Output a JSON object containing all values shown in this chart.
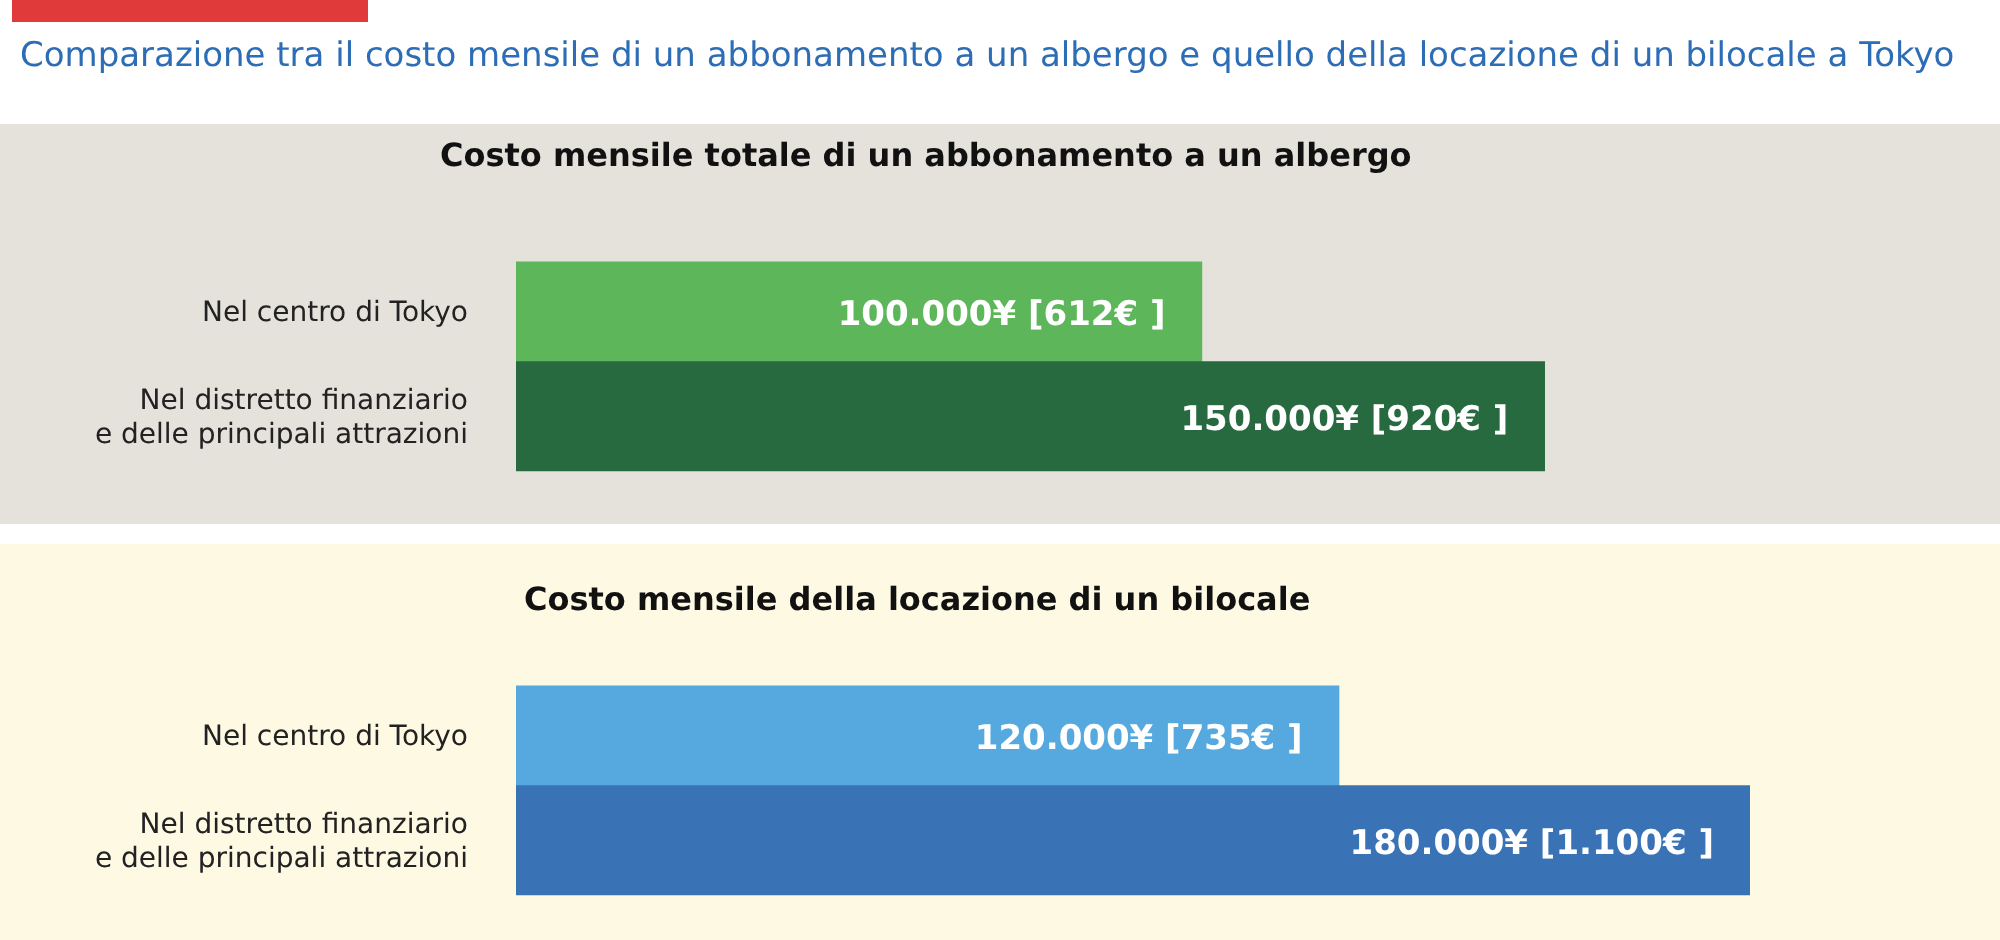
{
  "chart_data": [
    {
      "type": "bar",
      "orientation": "horizontal",
      "title": "Comparazione tra il costo mensile di un abbonamento a un albergo e quello della locazione di un bilocale a Tokyo",
      "subtitle": "Costo mensile totale di un abbonamento a un albergo",
      "categories": [
        "Nel centro di Tokyo",
        "Nel distretto finanziario\ne delle principali attrazioni"
      ],
      "values": [
        100000,
        150000
      ],
      "colors": [
        "#5db65a",
        "#276a3f"
      ],
      "value_labels": [
        "100.000¥ [612€ ]",
        "150.000¥ [920€ ]"
      ],
      "tick_labels": "y"
    },
    {
      "type": "bar",
      "orientation": "horizontal",
      "title": "Costo mensile della locazione di un bilocale",
      "categories": [
        "Nel centro di Tokyo",
        "Nel distretto finanziario\ne delle principali attrazioni"
      ],
      "values": [
        120000,
        180000
      ],
      "colors": [
        "#55a9de",
        "#3973b5"
      ],
      "value_labels": [
        "120.000¥ [735€ ]",
        "180.000¥ [1.100€ ]"
      ],
      "tick_labels": "y"
    }
  ]
}
